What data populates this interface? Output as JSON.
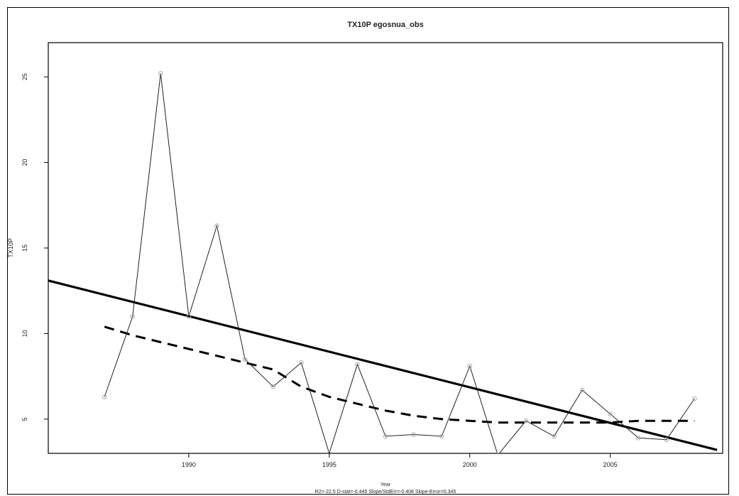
{
  "chart_data": {
    "type": "line",
    "title": "TX10P  egosnua_obs",
    "xlabel": "Year",
    "ylabel": "TX10P",
    "footer": "R2=-22.5  D-stat=-0.445  Slope/StdErr=-0.408  Slope-Error=0.345",
    "xlim": [
      1985,
      2009
    ],
    "ylim": [
      3,
      27
    ],
    "x_ticks": [
      "1990",
      "1995",
      "2000",
      "2005"
    ],
    "x_tick_values": [
      1990,
      1995,
      2000,
      2005
    ],
    "y_ticks": [
      "5",
      "10",
      "15",
      "20",
      "25"
    ],
    "y_tick_values": [
      5,
      10,
      15,
      20,
      25
    ],
    "grid": false,
    "series": [
      {
        "style": "observed",
        "x": [
          1987,
          1988,
          1989,
          1990,
          1991,
          1992,
          1993,
          1994,
          1995,
          1996,
          1997,
          1998,
          1999,
          2000,
          2001,
          2002,
          2003,
          2004,
          2005,
          2006,
          2007,
          2008
        ],
        "y": [
          6.3,
          11.0,
          25.2,
          11.0,
          16.3,
          8.5,
          6.9,
          8.3,
          3.0,
          8.2,
          4.0,
          4.1,
          4.0,
          8.1,
          2.9,
          4.9,
          4.0,
          6.7,
          5.3,
          3.9,
          3.8,
          6.2
        ]
      },
      {
        "style": "linear-trend",
        "x": [
          1985,
          2008.8
        ],
        "y": [
          13.1,
          3.2
        ]
      },
      {
        "style": "smoothed",
        "x": [
          1987,
          1988,
          1989,
          1990,
          1991,
          1992,
          1993,
          1994,
          1995,
          1996,
          1997,
          1998,
          1999,
          2000,
          2001,
          2002,
          2003,
          2004,
          2005,
          2006,
          2007,
          2008
        ],
        "y": [
          10.4,
          9.9,
          9.5,
          9.1,
          8.7,
          8.3,
          7.9,
          6.9,
          6.3,
          5.9,
          5.5,
          5.2,
          5.0,
          4.9,
          4.8,
          4.8,
          4.8,
          4.8,
          4.8,
          4.9,
          4.9,
          4.9
        ]
      }
    ]
  },
  "colors": {
    "observed_line": "#222222",
    "observed_marker": "#aaaaaa",
    "trend_line": "#000000",
    "smooth_line": "#000000"
  }
}
